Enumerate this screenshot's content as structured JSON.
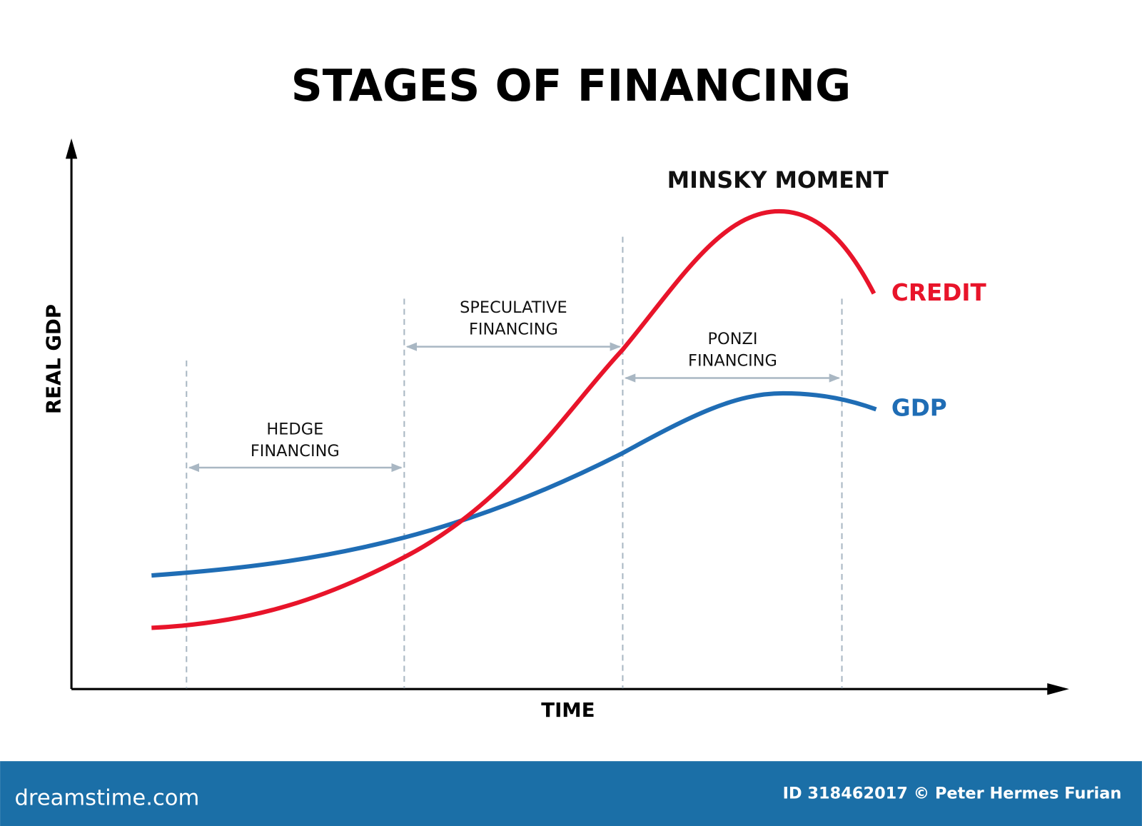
{
  "header": {
    "title": "STAGES OF FINANCING"
  },
  "axes": {
    "y_label": "REAL GDP",
    "x_label": "TIME"
  },
  "annotation": "MINSKY MOMENT",
  "curves": [
    {
      "label": "CREDIT"
    },
    {
      "label": "GDP"
    }
  ],
  "stages": [
    {
      "lines": [
        "HEDGE",
        "FINANCING"
      ]
    },
    {
      "lines": [
        "SPECULATIVE",
        "FINANCING"
      ]
    },
    {
      "lines": [
        "PONZI",
        "FINANCING"
      ]
    }
  ],
  "footer": {
    "brand": "dreamstime.com",
    "credit": "ID 318462017 © Peter Hermes Furian"
  }
}
